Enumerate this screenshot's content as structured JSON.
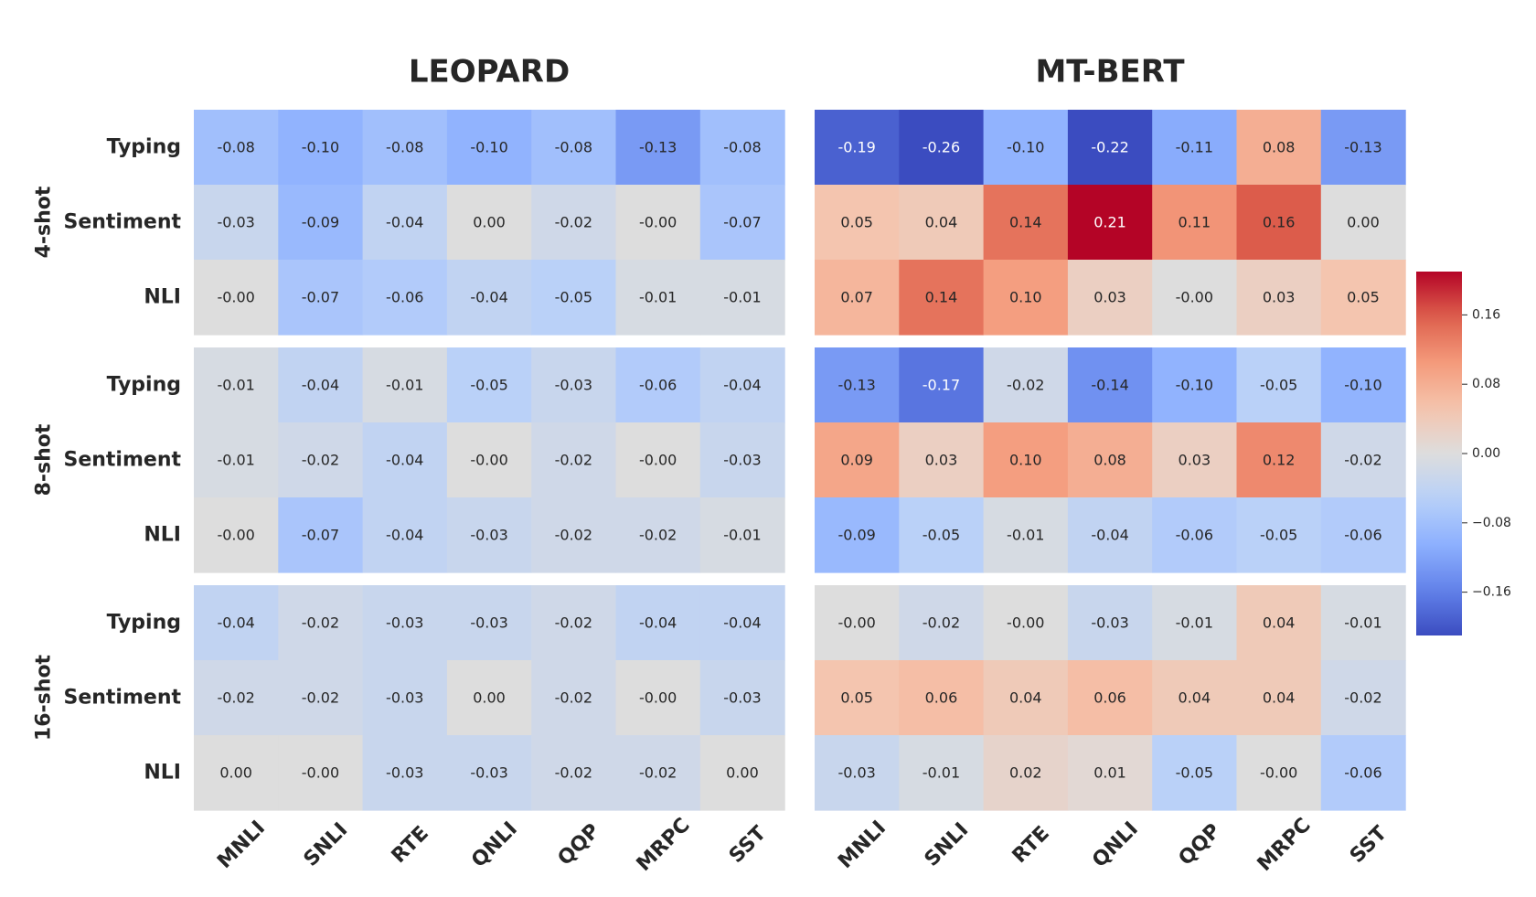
{
  "chart_data": {
    "type": "heatmap",
    "colormap": "coolwarm",
    "vmin": -0.21,
    "vmax": 0.21,
    "columns": [
      "MNLI",
      "SNLI",
      "RTE",
      "QNLI",
      "QQP",
      "MRPC",
      "SST"
    ],
    "row_labels": [
      "Typing",
      "Sentiment",
      "NLI"
    ],
    "shot_groups": [
      "4-shot",
      "8-shot",
      "16-shot"
    ],
    "colorbar_ticks": [
      {
        "value": 0.16,
        "label": "0.16"
      },
      {
        "value": 0.08,
        "label": "0.08"
      },
      {
        "value": 0.0,
        "label": "0.00"
      },
      {
        "value": -0.08,
        "label": "−0.08"
      },
      {
        "value": -0.16,
        "label": "−0.16"
      }
    ],
    "panels": [
      {
        "title": "LEOPARD",
        "groups": [
          {
            "shot": "4-shot",
            "rows": [
              {
                "label": "Typing",
                "values": [
                  -0.08,
                  -0.1,
                  -0.08,
                  -0.1,
                  -0.08,
                  -0.13,
                  -0.08
                ],
                "text": [
                  "-0.08",
                  "-0.10",
                  "-0.08",
                  "-0.10",
                  "-0.08",
                  "-0.13",
                  "-0.08"
                ]
              },
              {
                "label": "Sentiment",
                "values": [
                  -0.03,
                  -0.09,
                  -0.04,
                  0.0,
                  -0.02,
                  -0.0,
                  -0.07
                ],
                "text": [
                  "-0.03",
                  "-0.09",
                  "-0.04",
                  "0.00",
                  "-0.02",
                  "-0.00",
                  "-0.07"
                ]
              },
              {
                "label": "NLI",
                "values": [
                  -0.0,
                  -0.07,
                  -0.06,
                  -0.04,
                  -0.05,
                  -0.01,
                  -0.01
                ],
                "text": [
                  "-0.00",
                  "-0.07",
                  "-0.06",
                  "-0.04",
                  "-0.05",
                  "-0.01",
                  "-0.01"
                ]
              }
            ]
          },
          {
            "shot": "8-shot",
            "rows": [
              {
                "label": "Typing",
                "values": [
                  -0.01,
                  -0.04,
                  -0.01,
                  -0.05,
                  -0.03,
                  -0.06,
                  -0.04
                ],
                "text": [
                  "-0.01",
                  "-0.04",
                  "-0.01",
                  "-0.05",
                  "-0.03",
                  "-0.06",
                  "-0.04"
                ]
              },
              {
                "label": "Sentiment",
                "values": [
                  -0.01,
                  -0.02,
                  -0.04,
                  -0.0,
                  -0.02,
                  -0.0,
                  -0.03
                ],
                "text": [
                  "-0.01",
                  "-0.02",
                  "-0.04",
                  "-0.00",
                  "-0.02",
                  "-0.00",
                  "-0.03"
                ]
              },
              {
                "label": "NLI",
                "values": [
                  -0.0,
                  -0.07,
                  -0.04,
                  -0.03,
                  -0.02,
                  -0.02,
                  -0.01
                ],
                "text": [
                  "-0.00",
                  "-0.07",
                  "-0.04",
                  "-0.03",
                  "-0.02",
                  "-0.02",
                  "-0.01"
                ]
              }
            ]
          },
          {
            "shot": "16-shot",
            "rows": [
              {
                "label": "Typing",
                "values": [
                  -0.04,
                  -0.02,
                  -0.03,
                  -0.03,
                  -0.02,
                  -0.04,
                  -0.04
                ],
                "text": [
                  "-0.04",
                  "-0.02",
                  "-0.03",
                  "-0.03",
                  "-0.02",
                  "-0.04",
                  "-0.04"
                ]
              },
              {
                "label": "Sentiment",
                "values": [
                  -0.02,
                  -0.02,
                  -0.03,
                  0.0,
                  -0.02,
                  -0.0,
                  -0.03
                ],
                "text": [
                  "-0.02",
                  "-0.02",
                  "-0.03",
                  "0.00",
                  "-0.02",
                  "-0.00",
                  "-0.03"
                ]
              },
              {
                "label": "NLI",
                "values": [
                  0.0,
                  -0.0,
                  -0.03,
                  -0.03,
                  -0.02,
                  -0.02,
                  0.0
                ],
                "text": [
                  "0.00",
                  "-0.00",
                  "-0.03",
                  "-0.03",
                  "-0.02",
                  "-0.02",
                  "0.00"
                ]
              }
            ]
          }
        ]
      },
      {
        "title": "MT-BERT",
        "groups": [
          {
            "shot": "4-shot",
            "rows": [
              {
                "label": "Typing",
                "values": [
                  -0.19,
                  -0.26,
                  -0.1,
                  -0.22,
                  -0.11,
                  0.08,
                  -0.13
                ],
                "text": [
                  "-0.19",
                  "-0.26",
                  "-0.10",
                  "-0.22",
                  "-0.11",
                  "0.08",
                  "-0.13"
                ]
              },
              {
                "label": "Sentiment",
                "values": [
                  0.05,
                  0.04,
                  0.14,
                  0.21,
                  0.11,
                  0.16,
                  0.0
                ],
                "text": [
                  "0.05",
                  "0.04",
                  "0.14",
                  "0.21",
                  "0.11",
                  "0.16",
                  "0.00"
                ]
              },
              {
                "label": "NLI",
                "values": [
                  0.07,
                  0.14,
                  0.1,
                  0.03,
                  -0.0,
                  0.03,
                  0.05
                ],
                "text": [
                  "0.07",
                  "0.14",
                  "0.10",
                  "0.03",
                  "-0.00",
                  "0.03",
                  "0.05"
                ]
              }
            ]
          },
          {
            "shot": "8-shot",
            "rows": [
              {
                "label": "Typing",
                "values": [
                  -0.13,
                  -0.17,
                  -0.02,
                  -0.14,
                  -0.1,
                  -0.05,
                  -0.1
                ],
                "text": [
                  "-0.13",
                  "-0.17",
                  "-0.02",
                  "-0.14",
                  "-0.10",
                  "-0.05",
                  "-0.10"
                ]
              },
              {
                "label": "Sentiment",
                "values": [
                  0.09,
                  0.03,
                  0.1,
                  0.08,
                  0.03,
                  0.12,
                  -0.02
                ],
                "text": [
                  "0.09",
                  "0.03",
                  "0.10",
                  "0.08",
                  "0.03",
                  "0.12",
                  "-0.02"
                ]
              },
              {
                "label": "NLI",
                "values": [
                  -0.09,
                  -0.05,
                  -0.01,
                  -0.04,
                  -0.06,
                  -0.05,
                  -0.06
                ],
                "text": [
                  "-0.09",
                  "-0.05",
                  "-0.01",
                  "-0.04",
                  "-0.06",
                  "-0.05",
                  "-0.06"
                ]
              }
            ]
          },
          {
            "shot": "16-shot",
            "rows": [
              {
                "label": "Typing",
                "values": [
                  -0.0,
                  -0.02,
                  -0.0,
                  -0.03,
                  -0.01,
                  0.04,
                  -0.01
                ],
                "text": [
                  "-0.00",
                  "-0.02",
                  "-0.00",
                  "-0.03",
                  "-0.01",
                  "0.04",
                  "-0.01"
                ]
              },
              {
                "label": "Sentiment",
                "values": [
                  0.05,
                  0.06,
                  0.04,
                  0.06,
                  0.04,
                  0.04,
                  -0.02
                ],
                "text": [
                  "0.05",
                  "0.06",
                  "0.04",
                  "0.06",
                  "0.04",
                  "0.04",
                  "-0.02"
                ]
              },
              {
                "label": "NLI",
                "values": [
                  -0.03,
                  -0.01,
                  0.02,
                  0.01,
                  -0.05,
                  -0.0,
                  -0.06
                ],
                "text": [
                  "-0.03",
                  "-0.01",
                  "0.02",
                  "0.01",
                  "-0.05",
                  "-0.00",
                  "-0.06"
                ]
              }
            ]
          }
        ]
      }
    ]
  }
}
